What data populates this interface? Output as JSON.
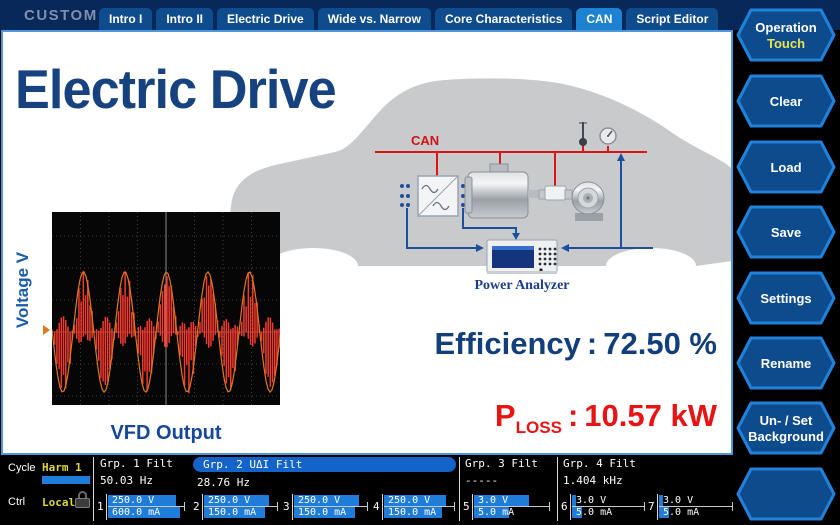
{
  "header": {
    "brand": "CUSTOM",
    "tabs": [
      {
        "label": "Intro I"
      },
      {
        "label": "Intro II"
      },
      {
        "label": "Electric Drive"
      },
      {
        "label": "Wide vs. Narrow"
      },
      {
        "label": "Core Characteristics"
      },
      {
        "label": "CAN",
        "active": true
      },
      {
        "label": "Script Editor"
      }
    ]
  },
  "sidebar": {
    "buttons": [
      {
        "label": "Operation",
        "sublabel": "Touch"
      },
      {
        "label": "Clear"
      },
      {
        "label": "Load"
      },
      {
        "label": "Save"
      },
      {
        "label": "Settings"
      },
      {
        "label": "Rename"
      },
      {
        "label": "Un- / Set",
        "label2": "Background"
      },
      {
        "label": ""
      }
    ]
  },
  "main": {
    "title": "Electric Drive",
    "scope": {
      "y_axis_label": "Voltage V",
      "caption": "VFD Output"
    },
    "diagram": {
      "bus_label": "CAN",
      "analyzer_label": "Power Analyzer"
    },
    "metrics": {
      "efficiency_label": "Efficiency",
      "efficiency_sep": ":",
      "efficiency_value": "72.50 %",
      "ploss_base": "P",
      "ploss_sub": "LOSS",
      "ploss_sep": ":",
      "ploss_value": "10.57 kW"
    }
  },
  "statusbar": {
    "cycle_label": "Cycle",
    "cycle_value": "Harm 1",
    "ctrl_label": "Ctrl",
    "ctrl_value": "Local",
    "lock_icon": "padlock-icon",
    "groups": [
      {
        "name": "Grp. 1 Filt",
        "freq": "50.03 Hz"
      },
      {
        "name": "Grp. 2 UΔI Filt",
        "freq": "28.76 Hz",
        "highlight": true
      },
      {
        "name": "Grp. 3 Filt",
        "freq": "-----"
      },
      {
        "name": "Grp. 4 Filt",
        "freq": "1.404 kHz"
      }
    ],
    "channels": [
      {
        "num": "1",
        "voltage": "250.0 V",
        "current": "600.0 mA",
        "v_fill": 88,
        "a_fill": 93
      },
      {
        "num": "2",
        "voltage": "250.0 V",
        "current": "150.0 mA",
        "v_fill": 88,
        "a_fill": 82
      },
      {
        "num": "3",
        "voltage": "250.0 V",
        "current": "150.0 mA",
        "v_fill": 88,
        "a_fill": 82
      },
      {
        "num": "4",
        "voltage": "250.0 V",
        "current": "150.0 mA",
        "v_fill": 88,
        "a_fill": 82
      },
      {
        "num": "5",
        "voltage": "3.0 V",
        "current": "5.0 mA",
        "v_fill": 72,
        "a_fill": 46
      },
      {
        "num": "6",
        "voltage": "3.0 V",
        "current": "5.0 mA",
        "v_fill": 6,
        "a_fill": 14
      },
      {
        "num": "7",
        "voltage": "3.0 V",
        "current": "5.0 mA",
        "v_fill": 6,
        "a_fill": 14
      }
    ]
  },
  "colors": {
    "header_navy": "#08285a",
    "tab_blue": "#0f4c8e",
    "tab_active_blue": "#1e82d2",
    "content_border_blue": "#4f97dd",
    "title_blue": "#16437f",
    "value_red": "#e81414",
    "bar_blue": "#1f7cd8",
    "highlight_yellow": "#dcd83e",
    "waveform_red": "#f23a2e",
    "can_red": "#dd1414"
  }
}
